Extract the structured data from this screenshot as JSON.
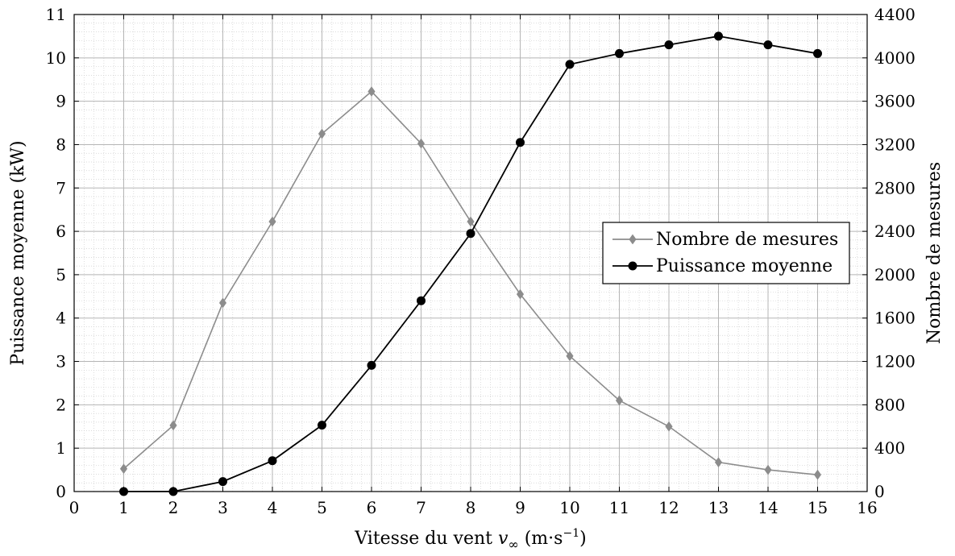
{
  "chart_data": {
    "type": "line",
    "title": "",
    "xlabel": {
      "text": "Vitesse du vent ",
      "var": "v",
      "sub": "∞",
      "unit_pre": " (m·s",
      "unit_sup": "−1",
      "unit_post": ")"
    },
    "ylabel_left": "Puissance moyenne (kW)",
    "ylabel_right": "Nombre de mesures",
    "xlim": [
      0,
      16
    ],
    "ylim_left": [
      0,
      11
    ],
    "ylim_right": [
      0,
      4400
    ],
    "x_ticks": [
      0,
      1,
      2,
      3,
      4,
      5,
      6,
      7,
      8,
      9,
      10,
      11,
      12,
      13,
      14,
      15,
      16
    ],
    "y_left_ticks": [
      0,
      1,
      2,
      3,
      4,
      5,
      6,
      7,
      8,
      9,
      10,
      11
    ],
    "y_right_ticks": [
      0,
      400,
      800,
      1200,
      1600,
      2000,
      2400,
      2800,
      3200,
      3600,
      4000,
      4400
    ],
    "grid": true,
    "legend_position": "center-right",
    "series": [
      {
        "name": "Nombre de mesures",
        "axis": "right",
        "color": "#8c8c8c",
        "marker": "diamond",
        "x": [
          1,
          2,
          3,
          4,
          5,
          6,
          7,
          8,
          9,
          10,
          11,
          12,
          13,
          14,
          15
        ],
        "values": [
          210,
          610,
          1740,
          2490,
          3300,
          3690,
          3210,
          2490,
          1820,
          1250,
          840,
          600,
          270,
          200,
          155
        ]
      },
      {
        "name": "Puissance moyenne",
        "axis": "left",
        "color": "#000000",
        "marker": "circle",
        "x": [
          1,
          2,
          3,
          4,
          5,
          6,
          7,
          8,
          9,
          10,
          11,
          12,
          13,
          14,
          15
        ],
        "values": [
          0.0,
          0.0,
          0.23,
          0.71,
          1.53,
          2.91,
          4.4,
          5.95,
          8.05,
          9.85,
          10.1,
          10.3,
          10.5,
          10.3,
          10.1
        ]
      }
    ]
  }
}
